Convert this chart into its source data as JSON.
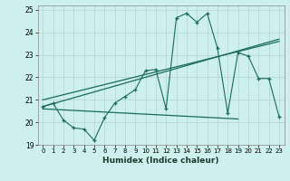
{
  "title": "",
  "xlabel": "Humidex (Indice chaleur)",
  "ylabel": "",
  "background_color": "#cdefed",
  "grid_color": "#dce8e8",
  "line_color": "#1a6b5a",
  "xlim": [
    -0.5,
    23.5
  ],
  "ylim": [
    19,
    25.2
  ],
  "yticks": [
    19,
    20,
    21,
    22,
    23,
    24,
    25
  ],
  "xticks": [
    0,
    1,
    2,
    3,
    4,
    5,
    6,
    7,
    8,
    9,
    10,
    11,
    12,
    13,
    14,
    15,
    16,
    17,
    18,
    19,
    20,
    21,
    22,
    23
  ],
  "series1_x": [
    0,
    1,
    2,
    3,
    4,
    5,
    6,
    7,
    8,
    9,
    10,
    11,
    12,
    13,
    14,
    15,
    16,
    17,
    18,
    19,
    20,
    21,
    22,
    23
  ],
  "series1_y": [
    20.7,
    20.85,
    20.1,
    19.75,
    19.7,
    19.2,
    20.2,
    20.85,
    21.15,
    21.45,
    22.3,
    22.35,
    20.6,
    24.65,
    24.85,
    24.45,
    24.85,
    23.3,
    20.4,
    23.1,
    22.95,
    21.95,
    21.95,
    20.25
  ],
  "series2_x": [
    0,
    23
  ],
  "series2_y": [
    20.7,
    23.7
  ],
  "series3_x": [
    0,
    19
  ],
  "series3_y": [
    20.6,
    20.15
  ],
  "series4_x": [
    0,
    23
  ],
  "series4_y": [
    21.0,
    23.6
  ]
}
